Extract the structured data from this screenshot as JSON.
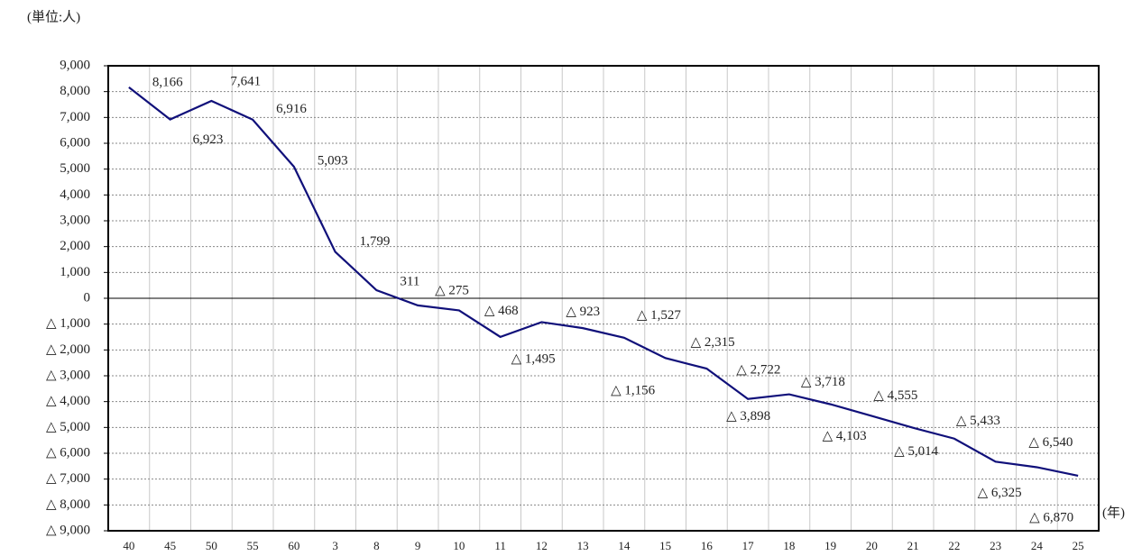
{
  "chart_data": {
    "type": "line",
    "ylabel": "(単位:人)",
    "xlabel": "(年)",
    "categories": [
      "40",
      "45",
      "50",
      "55",
      "60",
      "3",
      "8",
      "9",
      "10",
      "11",
      "12",
      "13",
      "14",
      "15",
      "16",
      "17",
      "18",
      "19",
      "20",
      "21",
      "22",
      "23",
      "24",
      "25"
    ],
    "series": [
      {
        "name": null,
        "color": "#10107a",
        "values": [
          8166,
          6923,
          7641,
          6916,
          5093,
          1799,
          311,
          -275,
          -468,
          -1495,
          -923,
          -1156,
          -1527,
          -2315,
          -2722,
          -3898,
          -3718,
          -4103,
          -4555,
          -5014,
          -5433,
          -6325,
          -6540,
          -6870
        ],
        "value_labels": [
          "8,166",
          "6,923",
          "7,641",
          "6,916",
          "5,093",
          "1,799",
          "311",
          "△ 275",
          "△ 468",
          "△ 1,495",
          "△ 923",
          "△ 1,156",
          "△ 1,527",
          "△ 2,315",
          "△ 2,722",
          "△ 3,898",
          "△ 3,718",
          "△ 4,103",
          "△ 4,555",
          "△ 5,014",
          "△ 5,433",
          "△ 6,325",
          "△ 6,540",
          "△ 6,870"
        ]
      }
    ],
    "ylim": [
      -9000,
      9000
    ],
    "yticks": [
      {
        "value": 9000,
        "label": "9,000"
      },
      {
        "value": 8000,
        "label": "8,000"
      },
      {
        "value": 7000,
        "label": "7,000"
      },
      {
        "value": 6000,
        "label": "6,000"
      },
      {
        "value": 5000,
        "label": "5,000"
      },
      {
        "value": 4000,
        "label": "4,000"
      },
      {
        "value": 3000,
        "label": "3,000"
      },
      {
        "value": 2000,
        "label": "2,000"
      },
      {
        "value": 1000,
        "label": "1,000"
      },
      0,
      {
        "value": -1000,
        "label": "△ 1,000"
      },
      {
        "value": -2000,
        "label": "△ 2,000"
      },
      {
        "value": -3000,
        "label": "△ 3,000"
      },
      {
        "value": -4000,
        "label": "△ 4,000"
      },
      {
        "value": -5000,
        "label": "△ 5,000"
      },
      {
        "value": -6000,
        "label": "△ 6,000"
      },
      {
        "value": -7000,
        "label": "△ 7,000"
      },
      {
        "value": -8000,
        "label": "△ 8,000"
      },
      {
        "value": -9000,
        "label": "△ 9,000"
      }
    ],
    "grid": true
  }
}
